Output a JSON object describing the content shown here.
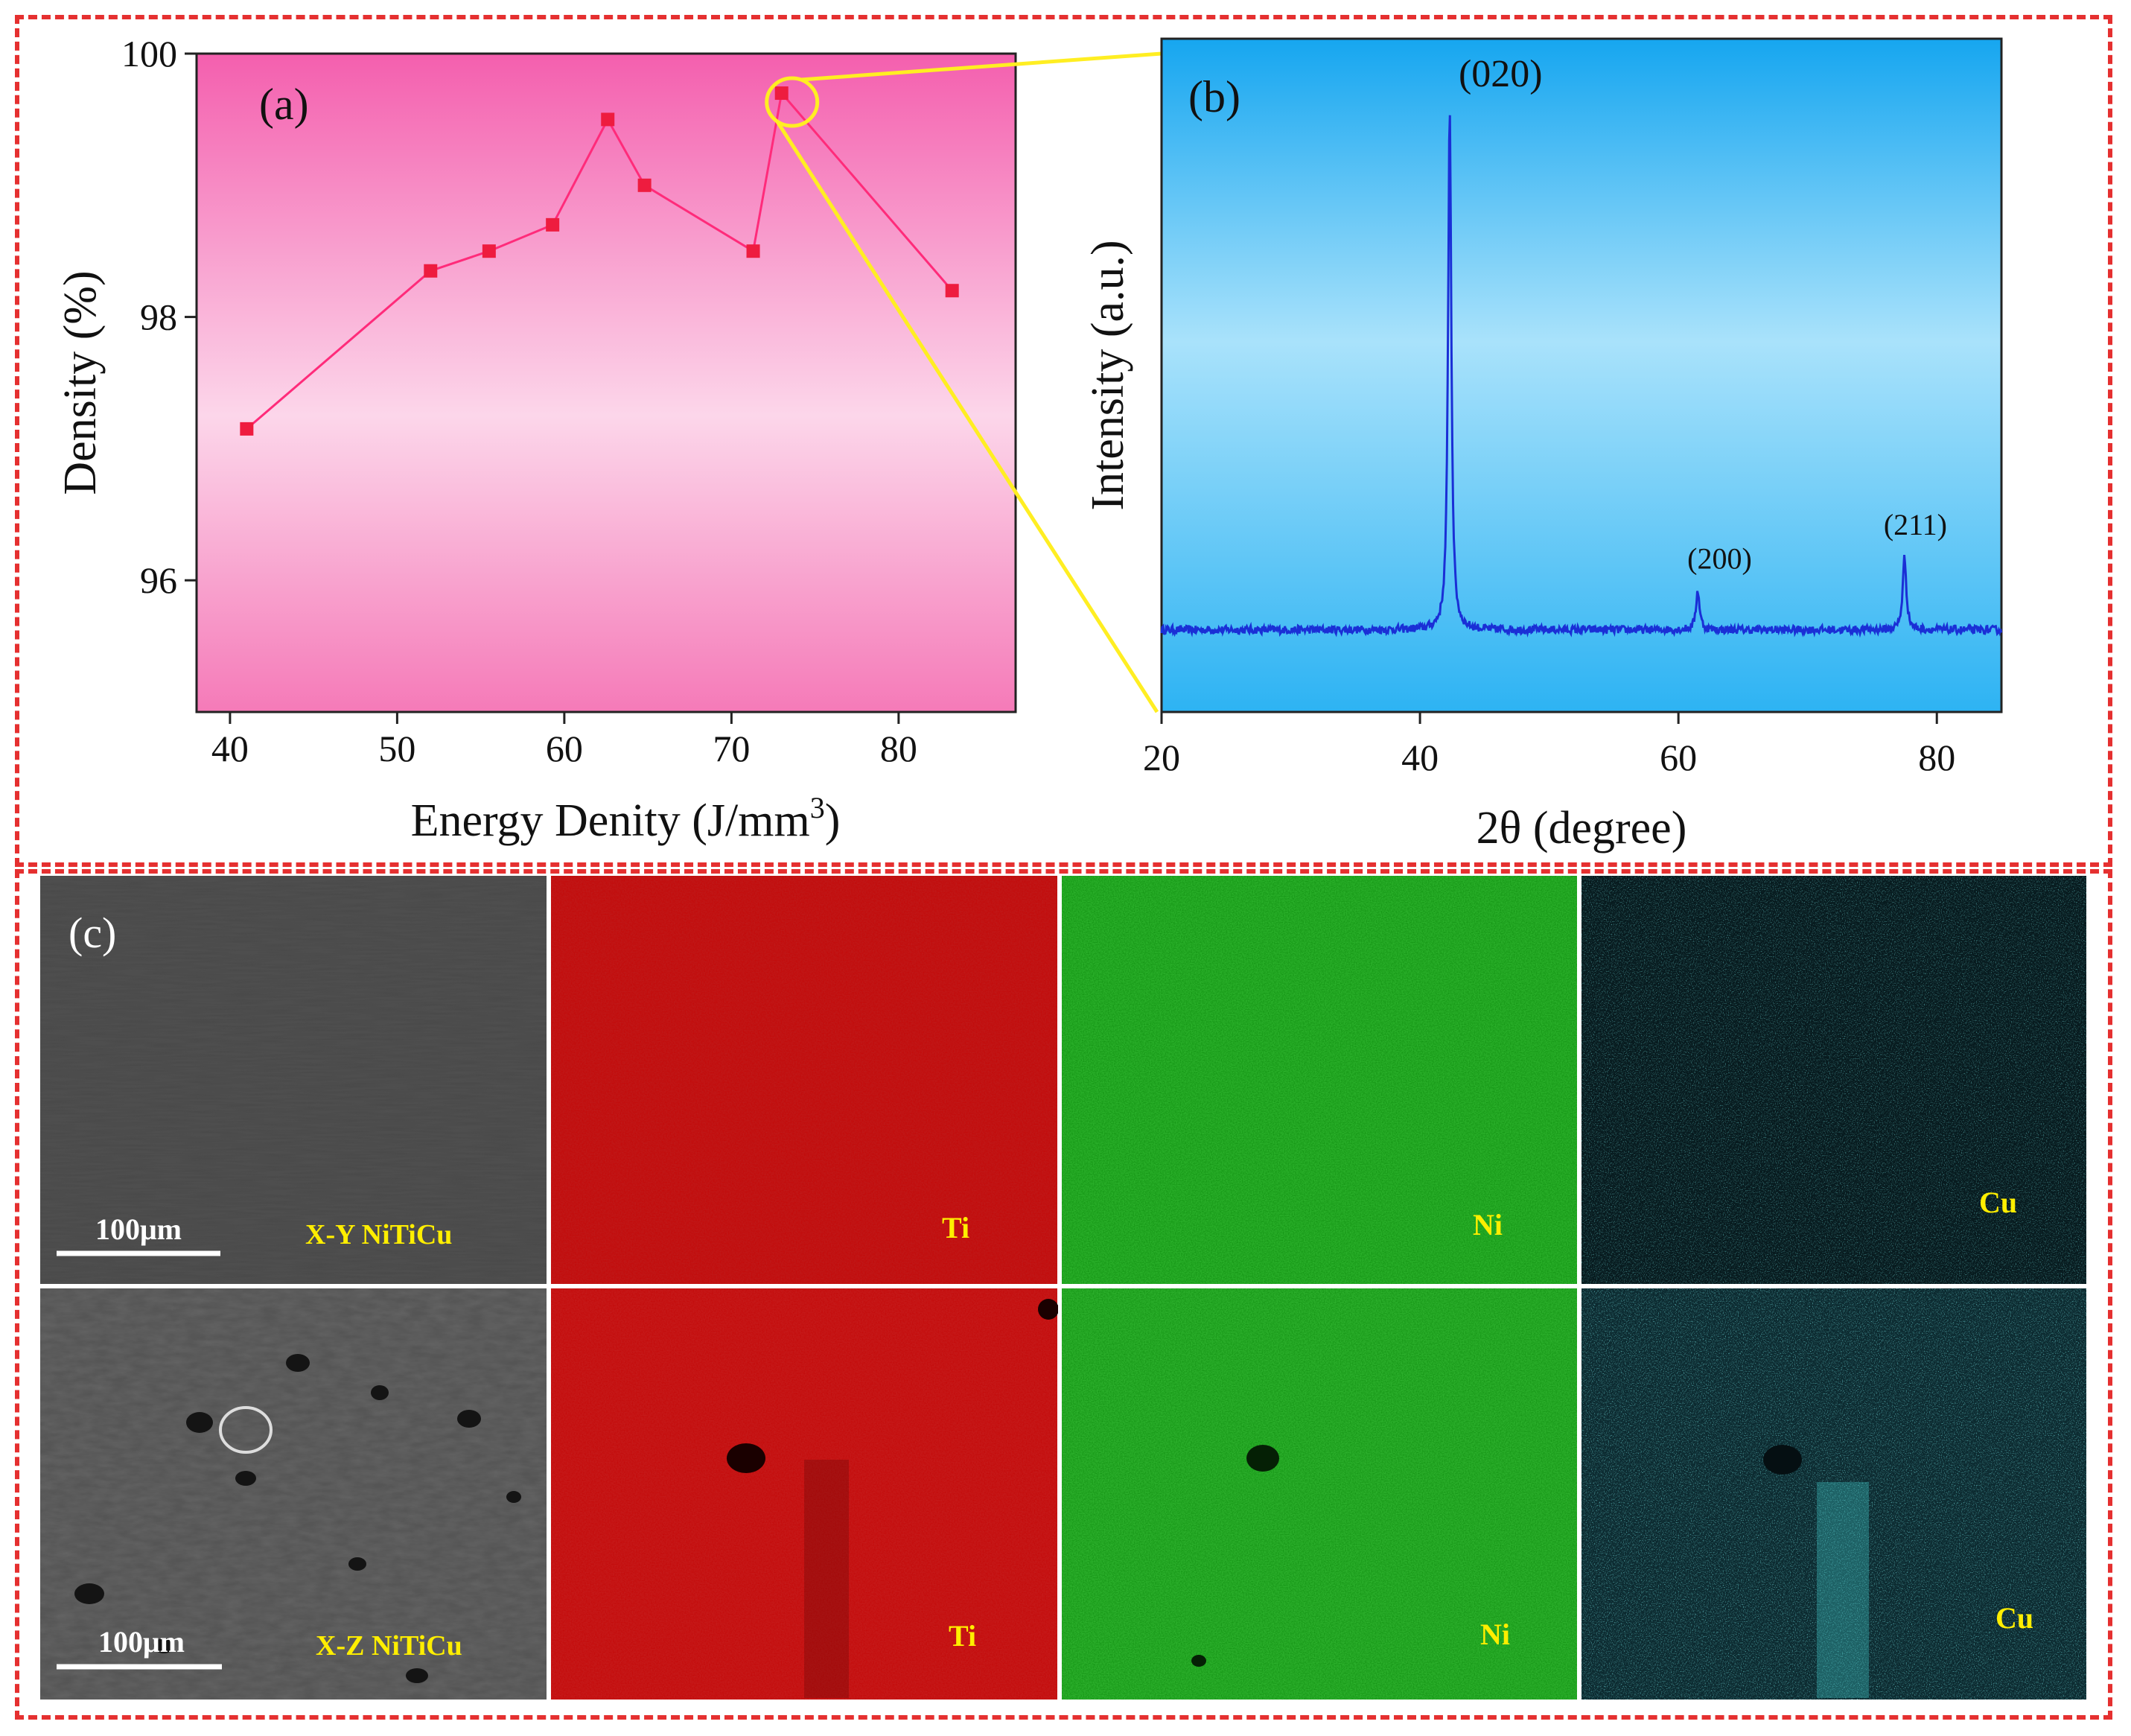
{
  "colors": {
    "frame": "#e53030",
    "panel_a_bg_top": "#f45fae",
    "panel_a_bg_mid": "#fcd6ea",
    "panel_a_bg_bottom": "#f57ab8",
    "panel_a_line": "#ff2b7a",
    "panel_a_marker": "#ee1c3f",
    "panel_b_bg_top": "#16a6f0",
    "panel_b_bg_mid": "#a9e2fb",
    "panel_b_bg_bottom": "#2db3f3",
    "panel_b_line": "#1a2fd6",
    "highlight": "#ffee22",
    "label_text": "#ffee00",
    "ti_map": "#b01010",
    "ni_map": "#22a022",
    "cu_map": "#0b2e34"
  },
  "chart_data": [
    {
      "id": "a",
      "type": "line",
      "panel_label": "(a)",
      "x": [
        41,
        52,
        55.5,
        59.3,
        62.6,
        64.8,
        71.3,
        73,
        83.2
      ],
      "y": [
        97.15,
        98.35,
        98.5,
        98.7,
        99.5,
        99.0,
        98.5,
        99.7,
        98.2
      ],
      "xlabel": "Energy Denity (J/mm",
      "xlabel_superscript": "3",
      "xlabel_close": ")",
      "ylabel": "Density (%)",
      "xlim": [
        38,
        87
      ],
      "ylim": [
        95,
        100
      ],
      "xticks": [
        40,
        50,
        60,
        70,
        80
      ],
      "xtick_labels": [
        "40",
        "50",
        "60",
        "70",
        "80"
      ],
      "yticks": [
        96,
        98,
        100
      ],
      "ytick_labels": [
        "96",
        "98",
        "100"
      ],
      "highlight_point_index": 7
    },
    {
      "id": "b",
      "type": "line",
      "panel_label": "(b)",
      "xlabel": "2θ (degree)",
      "ylabel": "Intensity (a.u.)",
      "xlim": [
        20,
        85
      ],
      "ylim": [
        0,
        1
      ],
      "xticks": [
        20,
        40,
        60,
        80
      ],
      "xtick_labels": [
        "20",
        "40",
        "60",
        "80"
      ],
      "baseline": 0.122,
      "peaks": [
        {
          "label": "(020)",
          "position": 42.3,
          "height": 0.905
        },
        {
          "label": "(200)",
          "position": 61.5,
          "height": 0.18
        },
        {
          "label": "(211)",
          "position": 77.5,
          "height": 0.23
        }
      ]
    }
  ],
  "panel_c": {
    "label": "(c)",
    "rows": [
      {
        "sample": "X-Y NiTiCu",
        "scale_bar": "100μm",
        "maps": [
          "Ti",
          "Ni",
          "Cu"
        ]
      },
      {
        "sample": "X-Z NiTiCu",
        "scale_bar": "100μm",
        "maps": [
          "Ti",
          "Ni",
          "Cu"
        ]
      }
    ]
  }
}
